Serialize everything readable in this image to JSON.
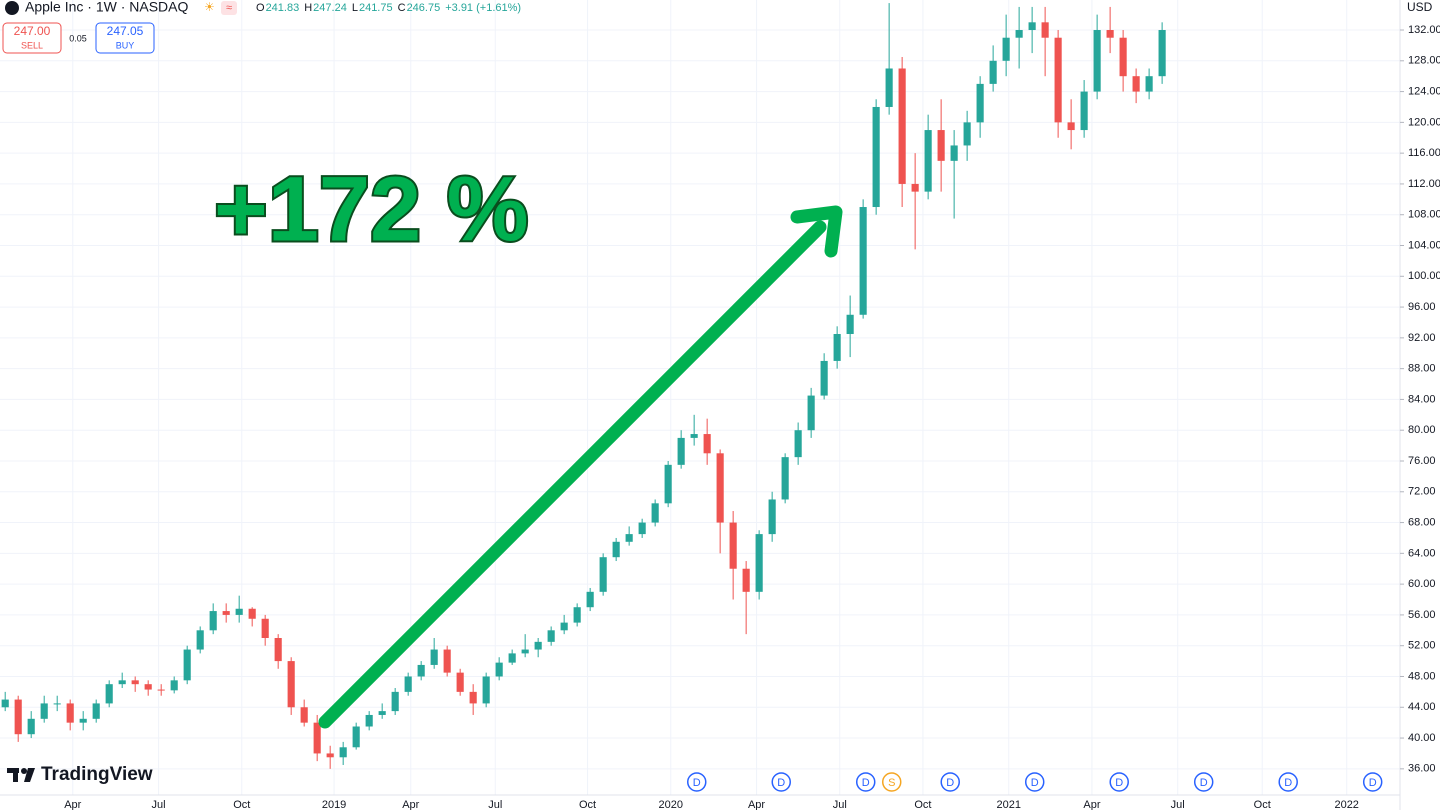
{
  "header": {
    "title": "Apple Inc · 1W · NASDAQ",
    "ohlc": [
      {
        "label": "O",
        "value": "241.83"
      },
      {
        "label": "H",
        "value": "247.24"
      },
      {
        "label": "L",
        "value": "241.75"
      },
      {
        "label": "C",
        "value": "246.75"
      }
    ],
    "change": "+3.91 (+1.61%)",
    "sell": {
      "price": "247.00",
      "label": "SELL"
    },
    "spread": "0.05",
    "buy": {
      "price": "247.05",
      "label": "BUY"
    },
    "currency": "USD",
    "logo": "TradingView"
  },
  "chart_data": {
    "type": "candlestick",
    "annotation": "+172 %",
    "up_color": "#26a69a",
    "down_color": "#ef5350",
    "grid": true,
    "open": [
      44,
      45,
      40.5,
      42.5,
      44.5,
      44.5,
      42,
      42.5,
      44.5,
      47,
      47.5,
      47,
      46.3,
      46.2,
      47.5,
      51.5,
      54,
      56.5,
      56,
      56.8,
      55.5,
      53,
      50,
      44,
      42,
      38,
      37.5,
      38.8,
      41.5,
      43,
      43.5,
      46,
      48,
      49.5,
      51.5,
      48.5,
      46,
      44.5,
      48,
      49.8,
      51,
      51.5,
      52.5,
      54,
      55,
      57,
      59,
      63.5,
      65.5,
      66.5,
      68,
      70.5,
      75.5,
      79,
      79.5,
      77,
      68,
      62,
      59,
      66.5,
      71,
      76.5,
      80,
      84.5,
      89,
      92.5,
      95,
      109,
      122,
      127,
      112,
      111,
      119,
      115,
      117,
      120,
      125,
      128,
      131,
      132,
      133,
      131,
      120,
      119,
      124,
      132,
      131,
      126,
      124,
      126
    ],
    "high": [
      46,
      45.5,
      43.5,
      45.5,
      45.5,
      45,
      43.5,
      45,
      47.5,
      48.5,
      48,
      47.5,
      47,
      48,
      52,
      54.5,
      57.5,
      57.5,
      58.5,
      57,
      56,
      53.5,
      50.5,
      45,
      43,
      39,
      39.5,
      42,
      43.5,
      44.5,
      46.5,
      48.5,
      50,
      53,
      52,
      49,
      47,
      48.5,
      50.5,
      51.5,
      53.5,
      53,
      54.5,
      56,
      57.5,
      59.5,
      64,
      66,
      67.5,
      68.5,
      71,
      76,
      80,
      82,
      81.5,
      77.5,
      69.5,
      63,
      67,
      72,
      77,
      81,
      85.5,
      90,
      93.5,
      97.5,
      110,
      123,
      135.5,
      128.5,
      116,
      121,
      123,
      119,
      121.5,
      126,
      130,
      134,
      135,
      135,
      135,
      132,
      123,
      125.5,
      134,
      135,
      132,
      127,
      127,
      133
    ],
    "low": [
      43.5,
      39.5,
      40,
      42,
      43.5,
      41,
      41,
      42,
      44,
      46.5,
      46,
      45.5,
      45.5,
      45.8,
      47,
      51,
      53.5,
      55,
      55,
      54.5,
      52,
      49,
      43,
      41.5,
      37,
      36,
      36.5,
      38.5,
      41,
      42.5,
      43,
      45.5,
      47.5,
      49,
      48,
      45.5,
      43,
      44,
      47.5,
      49.5,
      50.5,
      50.5,
      52,
      53.5,
      54.5,
      56.5,
      58.5,
      63,
      65,
      66,
      67.5,
      70,
      75,
      78,
      75.5,
      64,
      58,
      53.5,
      58,
      65.5,
      70.5,
      75.5,
      79,
      84,
      88,
      89.5,
      94.5,
      108,
      121,
      109,
      103.5,
      110,
      111,
      107.5,
      115,
      118,
      124,
      126,
      127,
      129,
      126,
      118,
      116.5,
      118,
      123,
      129,
      124,
      122.5,
      123,
      125
    ],
    "close": [
      45,
      40.5,
      42.5,
      44.5,
      44.5,
      42,
      42.5,
      44.5,
      47,
      47.5,
      47,
      46.3,
      46.2,
      47.5,
      51.5,
      54,
      56.5,
      56,
      56.8,
      55.5,
      53,
      50,
      44,
      42,
      38,
      37.5,
      38.8,
      41.5,
      43,
      43.5,
      46,
      48,
      49.5,
      51.5,
      48.5,
      46,
      44.5,
      48,
      49.8,
      51,
      51.5,
      52.5,
      54,
      55,
      57,
      59,
      63.5,
      65.5,
      66.5,
      68,
      70.5,
      75.5,
      79,
      79.5,
      77,
      68,
      62,
      59,
      66.5,
      71,
      76.5,
      80,
      84.5,
      89,
      92.5,
      95,
      109,
      122,
      127,
      112,
      111,
      119,
      115,
      117,
      120,
      125,
      128,
      131,
      132,
      133,
      131,
      120,
      119,
      124,
      132,
      131,
      126,
      124,
      126,
      132
    ],
    "xlim": [
      -0.4,
      107.3
    ],
    "xticks": [
      {
        "value": 5.2,
        "label": "Apr"
      },
      {
        "value": 11.8,
        "label": "Jul"
      },
      {
        "value": 18.2,
        "label": "Oct"
      },
      {
        "value": 25.3,
        "label": "2019"
      },
      {
        "value": 31.2,
        "label": "Apr"
      },
      {
        "value": 37.7,
        "label": "Jul"
      },
      {
        "value": 44.8,
        "label": "Oct"
      },
      {
        "value": 51.2,
        "label": "2020"
      },
      {
        "value": 57.8,
        "label": "Apr"
      },
      {
        "value": 64.2,
        "label": "Jul"
      },
      {
        "value": 70.6,
        "label": "Oct"
      },
      {
        "value": 77.2,
        "label": "2021"
      },
      {
        "value": 83.6,
        "label": "Apr"
      },
      {
        "value": 90.2,
        "label": "Jul"
      },
      {
        "value": 96.7,
        "label": "Oct"
      },
      {
        "value": 103.2,
        "label": "2022"
      }
    ],
    "ylim": [
      32.6,
      135.9
    ],
    "yticks": [
      {
        "value": 36,
        "label": "36.00"
      },
      {
        "value": 40,
        "label": "40.00"
      },
      {
        "value": 44,
        "label": "44.00"
      },
      {
        "value": 48,
        "label": "48.00"
      },
      {
        "value": 52,
        "label": "52.00"
      },
      {
        "value": 56,
        "label": "56.00"
      },
      {
        "value": 60,
        "label": "60.00"
      },
      {
        "value": 64,
        "label": "64.00"
      },
      {
        "value": 68,
        "label": "68.00"
      },
      {
        "value": 72,
        "label": "72.00"
      },
      {
        "value": 76,
        "label": "76.00"
      },
      {
        "value": 80,
        "label": "80.00"
      },
      {
        "value": 84,
        "label": "84.00"
      },
      {
        "value": 88,
        "label": "88.00"
      },
      {
        "value": 92,
        "label": "92.00"
      },
      {
        "value": 96,
        "label": "96.00"
      },
      {
        "value": 100,
        "label": "100.00"
      },
      {
        "value": 104,
        "label": "104.00"
      },
      {
        "value": 108,
        "label": "108.00"
      },
      {
        "value": 112,
        "label": "112.00"
      },
      {
        "value": 116,
        "label": "116.00"
      },
      {
        "value": 120,
        "label": "120.00"
      },
      {
        "value": 124,
        "label": "124.00"
      },
      {
        "value": 128,
        "label": "128.00"
      },
      {
        "value": 132,
        "label": "132.00"
      }
    ],
    "events": [
      {
        "x": 53.2,
        "label": "D"
      },
      {
        "x": 59.7,
        "label": "D"
      },
      {
        "x": 66.2,
        "label": "D"
      },
      {
        "x": 68.2,
        "label": "S"
      },
      {
        "x": 72.7,
        "label": "D"
      },
      {
        "x": 79.2,
        "label": "D"
      },
      {
        "x": 85.7,
        "label": "D"
      },
      {
        "x": 92.2,
        "label": "D"
      },
      {
        "x": 98.7,
        "label": "D"
      },
      {
        "x": 105.2,
        "label": "D"
      }
    ]
  }
}
